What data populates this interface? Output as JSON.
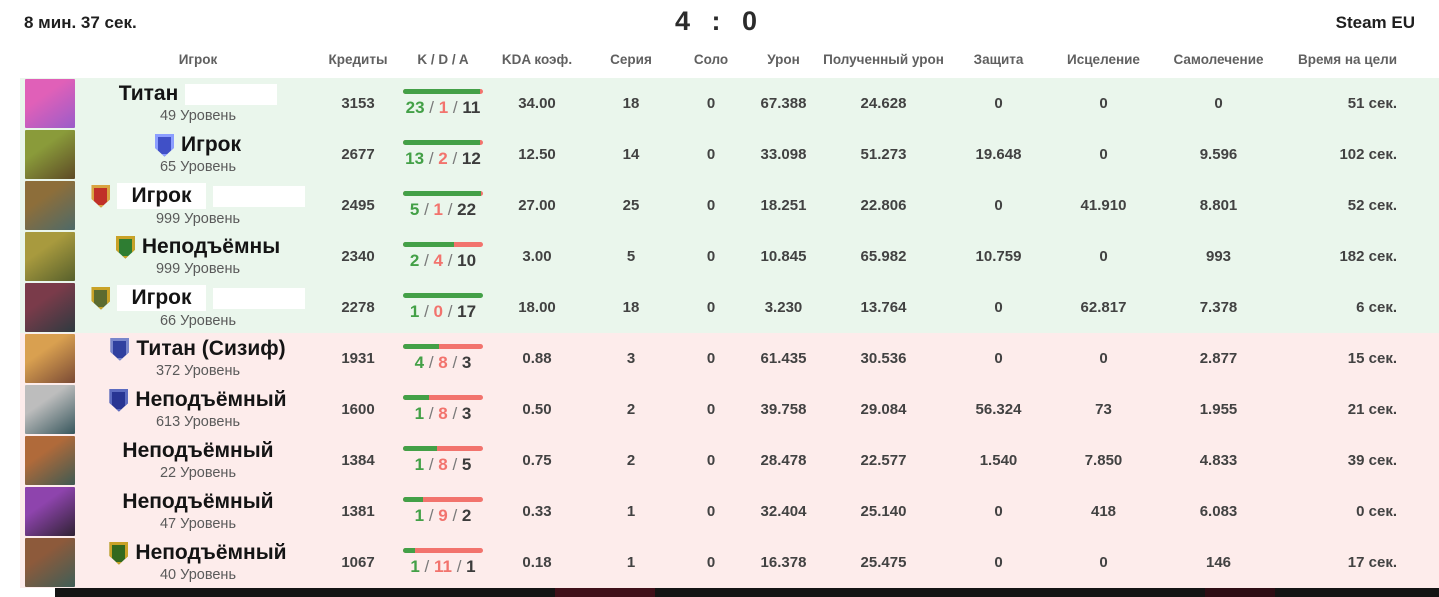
{
  "top_bar": {
    "match_time": "8 мин. 37 сек.",
    "score": "4 : 0",
    "server": "Steam EU"
  },
  "columns": {
    "player": "Игрок",
    "credits": "Кредиты",
    "kda": "K / D / A",
    "kda_ratio": "KDA коэф.",
    "streak": "Серия",
    "solo": "Соло",
    "damage": "Урон",
    "damage_taken": "Полученный урон",
    "shielding": "Защита",
    "healing": "Исцеление",
    "self_healing": "Самолечение",
    "objective_time": "Время на цели"
  },
  "level_suffix": "Уровень",
  "colors": {
    "team1_row_bg": "#eaf6ec",
    "team2_row_bg": "#fdeceb",
    "kill_green": "#43a047",
    "death_red": "#f2736d",
    "bar_green": "#43a047",
    "bar_red": "#f2736d"
  },
  "rows": [
    {
      "team": 1,
      "name": "Титан",
      "censor_after": true,
      "censor_bg": false,
      "badge": null,
      "level": "49",
      "credits": "3153",
      "kills": "23",
      "deaths": "1",
      "assists": "11",
      "bar_green_pct": 96,
      "kda_ratio": "34.00",
      "streak": "18",
      "solo": "0",
      "damage": "67.388",
      "damage_taken": "24.628",
      "shielding": "0",
      "healing": "0",
      "self_healing": "0",
      "objective_time": "51 сек.",
      "avatar_colors": [
        "#e060b8",
        "#9a5cc9"
      ]
    },
    {
      "team": 1,
      "name": "Игрок",
      "censor_after": false,
      "censor_bg": false,
      "badge": {
        "bg": "#4050c7",
        "border": "#8c9eff"
      },
      "level": "65",
      "credits": "2677",
      "kills": "13",
      "deaths": "2",
      "assists": "12",
      "bar_green_pct": 96,
      "kda_ratio": "12.50",
      "streak": "14",
      "solo": "0",
      "damage": "33.098",
      "damage_taken": "51.273",
      "shielding": "19.648",
      "healing": "0",
      "self_healing": "9.596",
      "objective_time": "102 сек.",
      "avatar_colors": [
        "#8a9b3a",
        "#5d4a26"
      ]
    },
    {
      "team": 1,
      "name": "Игрок",
      "censor_after": true,
      "censor_bg": true,
      "badge": {
        "bg": "#c03028",
        "border": "#d9a441"
      },
      "level": "999",
      "credits": "2495",
      "kills": "5",
      "deaths": "1",
      "assists": "22",
      "bar_green_pct": 97,
      "kda_ratio": "27.00",
      "streak": "25",
      "solo": "0",
      "damage": "18.251",
      "damage_taken": "22.806",
      "shielding": "0",
      "healing": "41.910",
      "self_healing": "8.801",
      "objective_time": "52 сек.",
      "avatar_colors": [
        "#8d6e3a",
        "#4e6a68"
      ]
    },
    {
      "team": 1,
      "name": "Неподъёмны",
      "censor_after": false,
      "censor_bg": false,
      "badge": {
        "bg": "#2e7d32",
        "border": "#c9a227"
      },
      "level": "999",
      "credits": "2340",
      "kills": "2",
      "deaths": "4",
      "assists": "10",
      "bar_green_pct": 64,
      "kda_ratio": "3.00",
      "streak": "5",
      "solo": "0",
      "damage": "10.845",
      "damage_taken": "65.982",
      "shielding": "10.759",
      "healing": "0",
      "self_healing": "993",
      "objective_time": "182 сек.",
      "avatar_colors": [
        "#a89a3e",
        "#57602c"
      ]
    },
    {
      "team": 1,
      "name": "Игрок",
      "censor_after": true,
      "censor_bg": true,
      "badge": {
        "bg": "#5c6b2f",
        "border": "#c9a227"
      },
      "level": "66",
      "credits": "2278",
      "kills": "1",
      "deaths": "0",
      "assists": "17",
      "bar_green_pct": 100,
      "kda_ratio": "18.00",
      "streak": "18",
      "solo": "0",
      "damage": "3.230",
      "damage_taken": "13.764",
      "shielding": "0",
      "healing": "62.817",
      "self_healing": "7.378",
      "objective_time": "6 сек.",
      "avatar_colors": [
        "#7a3b4a",
        "#2e3a40"
      ]
    },
    {
      "team": 2,
      "name": "Титан (Сизиф)",
      "censor_after": false,
      "censor_bg": false,
      "badge": {
        "bg": "#30409f",
        "border": "#7986cb"
      },
      "level": "372",
      "credits": "1931",
      "kills": "4",
      "deaths": "8",
      "assists": "3",
      "bar_green_pct": 45,
      "kda_ratio": "0.88",
      "streak": "3",
      "solo": "0",
      "damage": "61.435",
      "damage_taken": "30.536",
      "shielding": "0",
      "healing": "0",
      "self_healing": "2.877",
      "objective_time": "15 сек.",
      "avatar_colors": [
        "#d9a050",
        "#7a4a35"
      ]
    },
    {
      "team": 2,
      "name": "Неподъёмный",
      "censor_after": false,
      "censor_bg": false,
      "badge": {
        "bg": "#283593",
        "border": "#5c6bc0"
      },
      "level": "613",
      "credits": "1600",
      "kills": "1",
      "deaths": "8",
      "assists": "3",
      "bar_green_pct": 33,
      "kda_ratio": "0.50",
      "streak": "2",
      "solo": "0",
      "damage": "39.758",
      "damage_taken": "29.084",
      "shielding": "56.324",
      "healing": "73",
      "self_healing": "1.955",
      "objective_time": "21 сек.",
      "avatar_colors": [
        "#bdbdbd",
        "#37565c"
      ]
    },
    {
      "team": 2,
      "name": "Неподъёмный",
      "censor_after": false,
      "censor_bg": false,
      "badge": null,
      "level": "22",
      "credits": "1384",
      "kills": "1",
      "deaths": "8",
      "assists": "5",
      "bar_green_pct": 42,
      "kda_ratio": "0.75",
      "streak": "2",
      "solo": "0",
      "damage": "28.478",
      "damage_taken": "22.577",
      "shielding": "1.540",
      "healing": "7.850",
      "self_healing": "4.833",
      "objective_time": "39 сек.",
      "avatar_colors": [
        "#b06a3a",
        "#3e5a52"
      ]
    },
    {
      "team": 2,
      "name": "Неподъёмный",
      "censor_after": false,
      "censor_bg": false,
      "badge": null,
      "level": "47",
      "credits": "1381",
      "kills": "1",
      "deaths": "9",
      "assists": "2",
      "bar_green_pct": 25,
      "kda_ratio": "0.33",
      "streak": "1",
      "solo": "0",
      "damage": "32.404",
      "damage_taken": "25.140",
      "shielding": "0",
      "healing": "418",
      "self_healing": "6.083",
      "objective_time": "0 сек.",
      "avatar_colors": [
        "#8e44ad",
        "#2f2233"
      ]
    },
    {
      "team": 2,
      "name": "Неподъёмный",
      "censor_after": false,
      "censor_bg": false,
      "badge": {
        "bg": "#33691e",
        "border": "#c9a227"
      },
      "level": "40",
      "credits": "1067",
      "kills": "1",
      "deaths": "11",
      "assists": "1",
      "bar_green_pct": 15,
      "kda_ratio": "0.18",
      "streak": "1",
      "solo": "0",
      "damage": "16.378",
      "damage_taken": "25.475",
      "shielding": "0",
      "healing": "0",
      "self_healing": "146",
      "objective_time": "17 сек.",
      "avatar_colors": [
        "#8d5a3b",
        "#3f5e57"
      ]
    }
  ]
}
